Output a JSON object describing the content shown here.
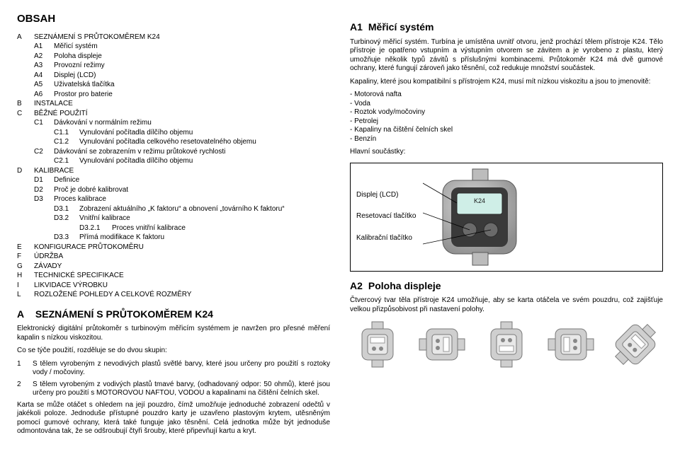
{
  "left": {
    "title": "OBSAH",
    "toc": [
      {
        "k": "A",
        "t": "SEZNÁMENÍ S PRŮTOKOMĚREM K24",
        "lvl": 0
      },
      {
        "k": "A1",
        "t": "Měřicí systém",
        "lvl": 1
      },
      {
        "k": "A2",
        "t": "Poloha displeje",
        "lvl": 1
      },
      {
        "k": "A3",
        "t": "Provozní režimy",
        "lvl": 1
      },
      {
        "k": "A4",
        "t": "Displej (LCD)",
        "lvl": 1
      },
      {
        "k": "A5",
        "t": "Uživatelská tlačítka",
        "lvl": 1
      },
      {
        "k": "A6",
        "t": "Prostor pro baterie",
        "lvl": 1
      },
      {
        "k": "B",
        "t": "INSTALACE",
        "lvl": 0
      },
      {
        "k": "C",
        "t": "BĚŽNÉ POUŽITÍ",
        "lvl": 0
      },
      {
        "k": "C1",
        "t": "Dávkování v normálním režimu",
        "lvl": 1
      },
      {
        "k": "C1.1",
        "t": "Vynulování počítadla dílčího objemu",
        "lvl": 2
      },
      {
        "k": "C1.2",
        "t": "Vynulování počítadla celkového resetovatelného objemu",
        "lvl": 2
      },
      {
        "k": "C2",
        "t": "Dávkování se zobrazením v režimu průtokové rychlosti",
        "lvl": 1
      },
      {
        "k": "C2.1",
        "t": "Vynulování počítadla dílčího objemu",
        "lvl": 2
      },
      {
        "k": "D",
        "t": "KALIBRACE",
        "lvl": 0
      },
      {
        "k": "D1",
        "t": "Definice",
        "lvl": 1
      },
      {
        "k": "D2",
        "t": "Proč je dobré kalibrovat",
        "lvl": 1
      },
      {
        "k": "D3",
        "t": "Proces kalibrace",
        "lvl": 1
      },
      {
        "k": "D3.1",
        "t": "Zobrazení aktuálního „K faktoru“ a obnovení „továrního K faktoru“",
        "lvl": 2
      },
      {
        "k": "D3.2",
        "t": "Vnitřní kalibrace",
        "lvl": 2
      },
      {
        "k": "D3.2.1",
        "t": "Proces vnitřní kalibrace",
        "lvl": 3
      },
      {
        "k": "D3.3",
        "t": "Přímá modifikace K faktoru",
        "lvl": 2
      },
      {
        "k": "E",
        "t": "KONFIGURACE PRŮTOKOMĚRU",
        "lvl": 0
      },
      {
        "k": "F",
        "t": "ÚDRŽBA",
        "lvl": 0
      },
      {
        "k": "G",
        "t": "ZÁVADY",
        "lvl": 0
      },
      {
        "k": "H",
        "t": "TECHNICKÉ SPECIFIKACE",
        "lvl": 0
      },
      {
        "k": "I",
        "t": "LIKVIDACE VÝROBKU",
        "lvl": 0
      },
      {
        "k": "L",
        "t": "ROZLOŽENÉ POHLEDY A CELKOVÉ ROZMĚRY",
        "lvl": 0
      }
    ],
    "h2a_lead": "A",
    "h2a": "SEZNÁMENÍ S PRŮTOKOMĚREM K24",
    "p1": "Elektronický digitální průtokoměr s turbinovým měřicím systémem je navržen pro přesné měření kapalin s nízkou viskozitou.",
    "p2": "Co se týče použití, rozděluje se do dvou skupin:",
    "n1": "1",
    "n1t": "S tělem vyrobeným z nevodivých plastů světlé barvy, které jsou určeny pro použití s roztoky vody / močoviny.",
    "n2": "2",
    "n2t": "S tělem vyrobeným z vodivých plastů tmavé barvy, (odhadovaný odpor: 50 ohmů), které jsou určeny pro použití s MOTOROVOU NAFTOU, VODOU a kapalinami na čištění čelních skel.",
    "p3": "Karta se může otáčet s ohledem na její pouzdro, čímž umožňuje jednoduché zobrazení odečtů v jakékoli poloze. Jednoduše přístupné pouzdro karty je uzavřeno plastovým krytem, utěsněným pomocí gumové ochrany, která také funguje jako těsnění. Celá jednotka může být jednoduše odmontována tak, že se odšroubují čtyři šrouby, které připevňují kartu a kryt."
  },
  "right": {
    "h2a_lead": "A1",
    "h2a": "Měřicí systém",
    "p1": "Turbinový měřicí systém. Turbína je umístěna uvnitř otvoru, jenž prochází tělem přístroje K24. Tělo přístroje je opatřeno vstupním a výstupním otvorem se závitem a je vyrobeno z plastu, který umožňuje několik typů závitů s příslušnými kombinacemi. Průtokoměr K24 má dvě gumové ochrany, které fungují zároveň jako těsnění, což redukuje množství součástek.",
    "p2": "Kapaliny, které jsou kompatibilní s přístrojem K24, musí mít nízkou viskozitu a jsou to jmenovitě:",
    "bullets": [
      "Motorová nafta",
      "Voda",
      "Roztok vody/močoviny",
      "Petrolej",
      "Kapaliny na čištění čelních skel",
      "Benzín"
    ],
    "p3": "Hlavní součástky:",
    "lbl1": "Displej (LCD)",
    "lbl2": "Resetovací tlačítko",
    "lbl3": "Kalibrační tlačítko",
    "h2b_lead": "A2",
    "h2b": "Poloha displeje",
    "p4": "Čtvercový tvar těla přístroje K24 umožňuje, aby se karta otáčela ve svém pouzdru, což zajišťuje velkou přizpůsobivost při nastavení polohy."
  },
  "style": {
    "bg": "#ffffff",
    "text": "#000000",
    "device_stroke": "#5a5a5a",
    "device_fill": "#b8b8b8",
    "device_dark": "#3a3a3a",
    "gauge_stroke": "#7a7a7a",
    "gauge_fill": "#cfcfcf"
  }
}
